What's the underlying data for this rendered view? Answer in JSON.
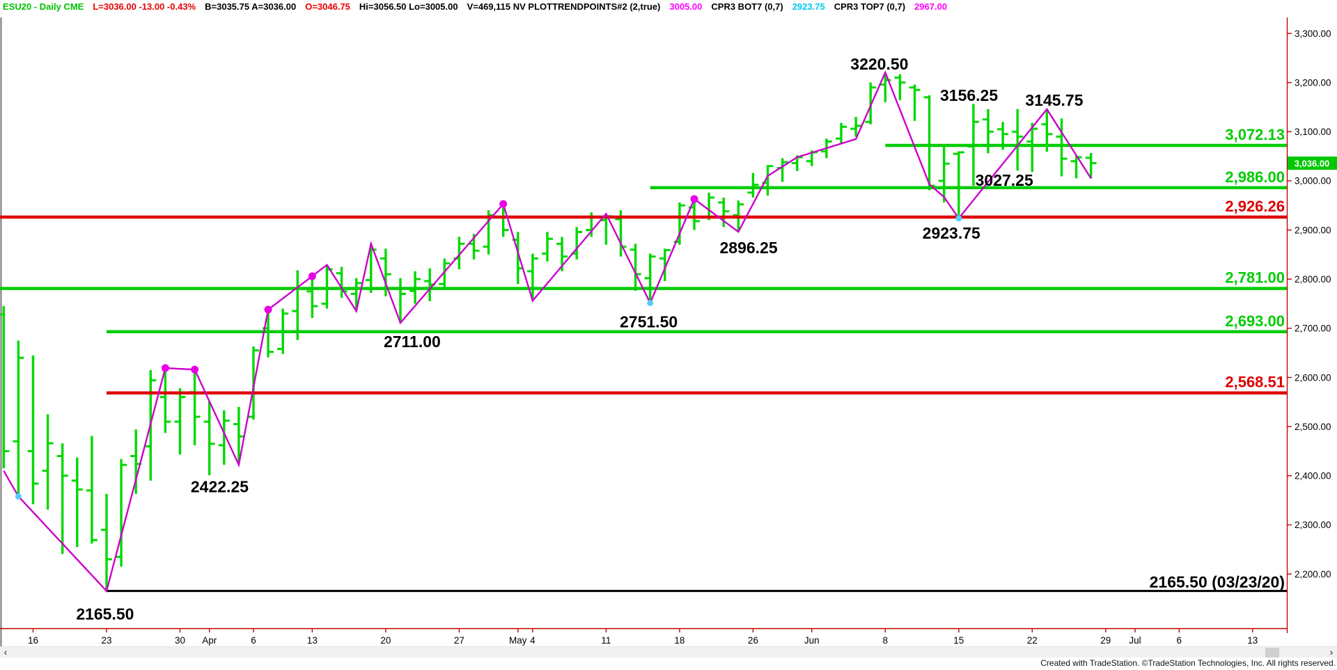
{
  "header": {
    "segments": [
      {
        "name": "symbol-description",
        "text": "ESU20 - Daily CME",
        "color": "green"
      },
      {
        "name": "last-change",
        "text": "L=3036.00  -13.00  -0.43%",
        "color": "red"
      },
      {
        "name": "bid-ask",
        "text": "B=3035.75  A=3036.00",
        "color": "black"
      },
      {
        "name": "open",
        "text": "O=3046.75",
        "color": "red"
      },
      {
        "name": "high-low",
        "text": "Hi=3056.50  Lo=3005.00",
        "color": "black"
      },
      {
        "name": "volume-indicator",
        "text": "V=469,115  NV  PLOTTRENDPOINTS#2 (2,true)",
        "color": "black"
      },
      {
        "name": "trendpoints-value",
        "text": "3005.00",
        "color": "magenta"
      },
      {
        "name": "cpr3-bot7",
        "text": "CPR3 BOT7 (0,7)",
        "color": "black"
      },
      {
        "name": "cpr3-bot7-value",
        "text": "2923.75",
        "color": "cyan"
      },
      {
        "name": "cpr3-top7",
        "text": "CPR3 TOP7 (0,7)",
        "color": "black"
      },
      {
        "name": "cpr3-top7-value",
        "text": "2967.00",
        "color": "magenta"
      }
    ]
  },
  "colors": {
    "green": "#00C000",
    "red": "#E60000",
    "black": "#000000",
    "magenta": "#FF00FF",
    "cyan": "#00C8F0",
    "bar_green": "#00D800",
    "line_green": "#00CC00",
    "line_red": "#DD0000",
    "line_black": "#000000",
    "trend_magenta": "#CC00CC",
    "dot_magenta": "#E800E8",
    "dot_cyan": "#55CCFF",
    "axis_red": "#C00000",
    "badge_bg": "#00C800",
    "badge_text": "#FFFFFF",
    "left_border": "#777777"
  },
  "chart_data": {
    "type": "ohlc-bar",
    "title": "ESU20 - Daily CME",
    "y_axis": {
      "tick_values": [
        3300,
        3200,
        3100,
        3000,
        2900,
        2800,
        2700,
        2600,
        2500,
        2400,
        2300,
        2200
      ],
      "tick_labels": [
        "3,300.00",
        "3,200.00",
        "3,100.00",
        "3,000.00",
        "2,900.00",
        "2,800.00",
        "2,700.00",
        "2,600.00",
        "2,500.00",
        "2,400.00",
        "2,300.00",
        "2,200.00"
      ]
    },
    "x_axis": {
      "labels": [
        {
          "text": "16",
          "bar_index": 2
        },
        {
          "text": "23",
          "bar_index": 7
        },
        {
          "text": "30",
          "bar_index": 12
        },
        {
          "text": "Apr",
          "bar_index": 14
        },
        {
          "text": "6",
          "bar_index": 17
        },
        {
          "text": "13",
          "bar_index": 21
        },
        {
          "text": "20",
          "bar_index": 26
        },
        {
          "text": "27",
          "bar_index": 31
        },
        {
          "text": "May",
          "bar_index": 35
        },
        {
          "text": "4",
          "bar_index": 36
        },
        {
          "text": "11",
          "bar_index": 41
        },
        {
          "text": "18",
          "bar_index": 46
        },
        {
          "text": "26",
          "bar_index": 51
        },
        {
          "text": "Jun",
          "bar_index": 55
        },
        {
          "text": "8",
          "bar_index": 60
        },
        {
          "text": "15",
          "bar_index": 65
        },
        {
          "text": "22",
          "bar_index": 70
        },
        {
          "text": "29",
          "bar_index": 75
        },
        {
          "text": "Jul",
          "bar_index": 77
        },
        {
          "text": "6",
          "bar_index": 80
        },
        {
          "text": "13",
          "bar_index": 85
        }
      ]
    },
    "bars": [
      [
        2728,
        2745,
        2415,
        2450
      ],
      [
        2470,
        2675,
        2355,
        2640
      ],
      [
        2450,
        2645,
        2342,
        2384
      ],
      [
        2410,
        2525,
        2331,
        2466
      ],
      [
        2440,
        2466,
        2241,
        2400
      ],
      [
        2390,
        2437,
        2255,
        2372
      ],
      [
        2370,
        2481,
        2262,
        2269
      ],
      [
        2290,
        2363,
        2165.5,
        2230
      ],
      [
        2235,
        2434,
        2215,
        2422
      ],
      [
        2440,
        2494,
        2363,
        2424
      ],
      [
        2460,
        2615,
        2390,
        2594
      ],
      [
        2560,
        2619,
        2487,
        2510
      ],
      [
        2510,
        2578,
        2443,
        2560
      ],
      [
        2570,
        2621,
        2462,
        2520
      ],
      [
        2510,
        2551,
        2401,
        2465
      ],
      [
        2462,
        2533,
        2422.25,
        2512
      ],
      [
        2505,
        2540,
        2424,
        2480
      ],
      [
        2520,
        2663,
        2514,
        2655
      ],
      [
        2700,
        2738,
        2641,
        2652
      ],
      [
        2658,
        2740,
        2648,
        2730
      ],
      [
        2735,
        2818,
        2676,
        2780
      ],
      [
        2775,
        2806,
        2721,
        2745
      ],
      [
        2750,
        2829,
        2740,
        2820
      ],
      [
        2812,
        2825,
        2762,
        2775
      ],
      [
        2770,
        2802,
        2735,
        2792
      ],
      [
        2798,
        2872,
        2772,
        2860
      ],
      [
        2842,
        2862,
        2765,
        2810
      ],
      [
        2782,
        2802,
        2711,
        2770
      ],
      [
        2776,
        2816,
        2750,
        2800
      ],
      [
        2796,
        2822,
        2755,
        2789
      ],
      [
        2790,
        2842,
        2780,
        2832
      ],
      [
        2842,
        2886,
        2820,
        2872
      ],
      [
        2872,
        2892,
        2840,
        2858
      ],
      [
        2866,
        2940,
        2850,
        2930
      ],
      [
        2926,
        2955,
        2886,
        2900
      ],
      [
        2880,
        2896,
        2790,
        2822
      ],
      [
        2816,
        2852,
        2756,
        2842
      ],
      [
        2852,
        2896,
        2836,
        2882
      ],
      [
        2872,
        2886,
        2816,
        2846
      ],
      [
        2852,
        2906,
        2840,
        2896
      ],
      [
        2900,
        2936,
        2886,
        2926
      ],
      [
        2920,
        2933,
        2870,
        2928
      ],
      [
        2922,
        2940,
        2846,
        2866
      ],
      [
        2860,
        2872,
        2776,
        2810
      ],
      [
        2802,
        2852,
        2751.5,
        2846
      ],
      [
        2842,
        2862,
        2796,
        2859
      ],
      [
        2876,
        2956,
        2870,
        2950
      ],
      [
        2946,
        2963,
        2900,
        2918
      ],
      [
        2926,
        2976,
        2920,
        2966
      ],
      [
        2956,
        2966,
        2906,
        2938
      ],
      [
        2930,
        2960,
        2896.25,
        2952
      ],
      [
        2976,
        3016,
        2966,
        2992
      ],
      [
        2996,
        3032,
        2970,
        3030
      ],
      [
        3026,
        3046,
        2998,
        3038
      ],
      [
        3036,
        3052,
        3020,
        3048
      ],
      [
        3040,
        3062,
        3030,
        3058
      ],
      [
        3060,
        3086,
        3046,
        3080
      ],
      [
        3086,
        3118,
        3076,
        3110
      ],
      [
        3106,
        3130,
        3090,
        3112
      ],
      [
        3120,
        3200,
        3115,
        3190
      ],
      [
        3196,
        3220.5,
        3160,
        3205
      ],
      [
        3210,
        3217,
        3164,
        3200
      ],
      [
        3190,
        3196,
        3122,
        3185
      ],
      [
        3170,
        3174,
        2981,
        2990
      ],
      [
        3000,
        3071,
        2956,
        3035
      ],
      [
        3055,
        3060,
        2923.75,
        3058
      ],
      [
        3070,
        3156.25,
        2990,
        3120
      ],
      [
        3125,
        3146,
        3056,
        3100
      ],
      [
        3105,
        3120,
        3063,
        3095
      ],
      [
        3100,
        3146,
        3021,
        3090
      ],
      [
        3080,
        3118,
        3018,
        3106
      ],
      [
        3115,
        3145.75,
        3059,
        3095
      ],
      [
        3090,
        3127,
        3009,
        3045
      ],
      [
        3040,
        3052,
        3005,
        3048
      ],
      [
        3046.75,
        3056.5,
        3005,
        3036
      ]
    ],
    "trendline_points": [
      [
        0,
        2410
      ],
      [
        1,
        2358
      ],
      [
        7,
        2165.5
      ],
      [
        11,
        2619
      ],
      [
        13,
        2616
      ],
      [
        16,
        2422.25
      ],
      [
        18,
        2738
      ],
      [
        21,
        2806
      ],
      [
        22,
        2829
      ],
      [
        24,
        2735
      ],
      [
        25,
        2872
      ],
      [
        27,
        2711
      ],
      [
        34,
        2953
      ],
      [
        36,
        2756
      ],
      [
        41,
        2933
      ],
      [
        44,
        2751.5
      ],
      [
        47,
        2963
      ],
      [
        50,
        2896.25
      ],
      [
        52,
        3010
      ],
      [
        54,
        3048
      ],
      [
        58,
        3085
      ],
      [
        60,
        3220.5
      ],
      [
        63,
        2993
      ],
      [
        64,
        2967
      ],
      [
        65,
        2923.75
      ],
      [
        71,
        3145.75
      ],
      [
        74,
        3005
      ]
    ],
    "trend_dots_magenta": [
      [
        11,
        2619
      ],
      [
        13,
        2616
      ],
      [
        18,
        2738
      ],
      [
        21,
        2806
      ],
      [
        34,
        2953
      ],
      [
        47,
        2963
      ]
    ],
    "trend_dots_cyan": [
      [
        1,
        2358
      ],
      [
        44,
        2751.5
      ],
      [
        65,
        2923.75
      ]
    ],
    "levels": [
      {
        "label": "3,072.13",
        "price": 3072.13,
        "color": "#00CC00",
        "from_bar": 60,
        "style": "level"
      },
      {
        "label": "2,986.00",
        "price": 2986.0,
        "color": "#00CC00",
        "from_bar": 44,
        "style": "level"
      },
      {
        "label": "2,926.26",
        "price": 2926.26,
        "color": "#DD0000",
        "from_bar": -0.3,
        "style": "level"
      },
      {
        "label": "2,781.00",
        "price": 2781.0,
        "color": "#00CC00",
        "from_bar": -0.3,
        "style": "level"
      },
      {
        "label": "2,693.00",
        "price": 2693.0,
        "color": "#00CC00",
        "from_bar": 7,
        "style": "level"
      },
      {
        "label": "2,568.51",
        "price": 2568.51,
        "color": "#DD0000",
        "from_bar": 7,
        "style": "level"
      },
      {
        "label": "2165.50 (03/23/20)",
        "price": 2165.5,
        "color": "#000000",
        "from_bar": 7,
        "style": "black"
      }
    ],
    "swing_labels": [
      {
        "text": "3220.50",
        "bar_index": 59.6,
        "anchor_price": 3238
      },
      {
        "text": "3156.25",
        "bar_index": 65.7,
        "anchor_price": 3174
      },
      {
        "text": "3145.75",
        "bar_index": 71.5,
        "anchor_price": 3164
      },
      {
        "text": "3027.25",
        "bar_index": 68.1,
        "anchor_price": 3001
      },
      {
        "text": "2923.75",
        "bar_index": 64.5,
        "anchor_price": 2894
      },
      {
        "text": "2896.25",
        "bar_index": 50.7,
        "anchor_price": 2864
      },
      {
        "text": "2751.50",
        "bar_index": 43.9,
        "anchor_price": 2713
      },
      {
        "text": "2711.00",
        "bar_index": 27.8,
        "anchor_price": 2673
      },
      {
        "text": "2422.25",
        "bar_index": 14.7,
        "anchor_price": 2378
      },
      {
        "text": "2165.50",
        "bar_index": 6.9,
        "anchor_price": 2119
      }
    ],
    "last_price": {
      "label": "3,036.00",
      "price": 3036
    }
  },
  "scrollbar": {
    "left_arrow": "‹",
    "right_arrow": "›"
  },
  "footer": {
    "credit": "Created with TradeStation. ©TradeStation Technologies, Inc. All rights reserved."
  }
}
